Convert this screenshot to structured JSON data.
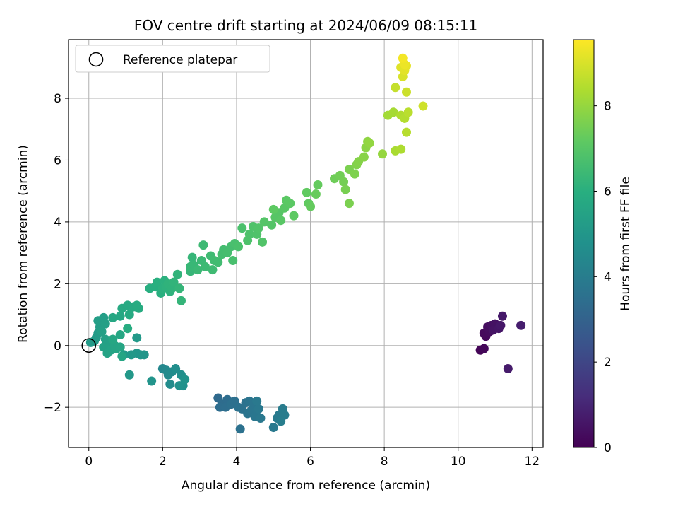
{
  "chart_data": {
    "type": "scatter",
    "title": "FOV centre drift starting at 2024/06/09 08:15:11",
    "xlabel": "Angular distance from reference (arcmin)",
    "ylabel": "Rotation from reference (arcmin)",
    "xlim": [
      -0.55,
      12.3
    ],
    "ylim": [
      -3.3,
      9.9
    ],
    "xticks": [
      0,
      2,
      4,
      6,
      8,
      10,
      12
    ],
    "xtick_labels": [
      "0",
      "2",
      "4",
      "6",
      "8",
      "10",
      "12"
    ],
    "yticks": [
      -2,
      0,
      2,
      4,
      6,
      8
    ],
    "ytick_labels": [
      "−2",
      "0",
      "2",
      "4",
      "6",
      "8"
    ],
    "grid": true,
    "legend": {
      "placement": "top-left",
      "entries": [
        {
          "label": "Reference platepar",
          "marker": "open-circle"
        }
      ]
    },
    "reference_point": {
      "x": 0,
      "y": 0
    },
    "colorbar": {
      "label": "Hours from first FF file",
      "colormap": "viridis",
      "range": [
        0,
        9.55
      ],
      "ticks": [
        0,
        2,
        4,
        6,
        8
      ],
      "tick_labels": [
        "0",
        "2",
        "4",
        "6",
        "8"
      ]
    },
    "points": [
      [
        10.6,
        -0.15,
        0.1
      ],
      [
        10.7,
        -0.1,
        0.15
      ],
      [
        10.75,
        0.3,
        0.2
      ],
      [
        10.7,
        0.4,
        0.25
      ],
      [
        10.85,
        0.45,
        0.3
      ],
      [
        10.8,
        0.6,
        0.35
      ],
      [
        10.9,
        0.65,
        0.4
      ],
      [
        11.0,
        0.7,
        0.45
      ],
      [
        10.95,
        0.5,
        0.5
      ],
      [
        11.1,
        0.55,
        0.55
      ],
      [
        11.15,
        0.65,
        0.6
      ],
      [
        11.2,
        0.95,
        0.65
      ],
      [
        11.35,
        -0.75,
        0.7
      ],
      [
        11.7,
        0.65,
        0.75
      ],
      [
        3.5,
        -1.7,
        3.3
      ],
      [
        3.6,
        -1.9,
        3.35
      ],
      [
        3.75,
        -1.75,
        3.4
      ],
      [
        3.55,
        -2.0,
        3.4
      ],
      [
        3.7,
        -2.0,
        3.45
      ],
      [
        3.85,
        -1.9,
        3.5
      ],
      [
        3.95,
        -1.8,
        3.5
      ],
      [
        4.05,
        -2.0,
        3.55
      ],
      [
        4.1,
        -2.7,
        3.55
      ],
      [
        4.15,
        -2.05,
        3.6
      ],
      [
        4.25,
        -1.85,
        3.6
      ],
      [
        4.35,
        -1.8,
        3.65
      ],
      [
        4.3,
        -2.2,
        3.65
      ],
      [
        4.4,
        -2.1,
        3.7
      ],
      [
        4.45,
        -1.85,
        3.7
      ],
      [
        4.5,
        -2.3,
        3.75
      ],
      [
        4.55,
        -2.1,
        3.75
      ],
      [
        4.6,
        -2.05,
        3.8
      ],
      [
        4.65,
        -2.35,
        3.8
      ],
      [
        4.55,
        -1.8,
        3.85
      ],
      [
        5.0,
        -2.65,
        3.85
      ],
      [
        5.1,
        -2.35,
        3.9
      ],
      [
        5.15,
        -2.25,
        3.9
      ],
      [
        5.25,
        -2.05,
        3.95
      ],
      [
        5.3,
        -2.25,
        3.95
      ],
      [
        5.2,
        -2.45,
        4.0
      ],
      [
        2.0,
        -0.75,
        4.4
      ],
      [
        2.1,
        -0.8,
        4.45
      ],
      [
        2.15,
        -0.95,
        4.5
      ],
      [
        2.25,
        -0.85,
        4.55
      ],
      [
        2.2,
        -1.25,
        4.6
      ],
      [
        2.35,
        -0.75,
        4.65
      ],
      [
        2.5,
        -0.95,
        4.7
      ],
      [
        2.55,
        -1.3,
        4.75
      ],
      [
        2.45,
        -1.3,
        4.8
      ],
      [
        2.6,
        -1.1,
        4.85
      ],
      [
        1.7,
        -1.15,
        4.9
      ],
      [
        1.5,
        -0.3,
        4.95
      ],
      [
        1.3,
        -0.25,
        5.0
      ],
      [
        1.4,
        -0.3,
        5.0
      ],
      [
        1.15,
        -0.3,
        5.05
      ],
      [
        1.1,
        -0.95,
        5.05
      ],
      [
        1.3,
        0.25,
        5.1
      ],
      [
        0.95,
        -0.3,
        5.1
      ],
      [
        0.05,
        0.1,
        5.15
      ],
      [
        0.15,
        0.15,
        5.15
      ],
      [
        0.2,
        0.25,
        5.2
      ],
      [
        0.25,
        0.4,
        5.2
      ],
      [
        0.3,
        0.6,
        5.25
      ],
      [
        0.35,
        0.75,
        5.25
      ],
      [
        0.25,
        0.8,
        5.3
      ],
      [
        0.4,
        0.9,
        5.3
      ],
      [
        0.45,
        0.7,
        5.35
      ],
      [
        0.35,
        0.45,
        5.35
      ],
      [
        0.45,
        0.2,
        5.4
      ],
      [
        0.55,
        0.05,
        5.4
      ],
      [
        0.4,
        -0.05,
        5.45
      ],
      [
        0.5,
        -0.1,
        5.45
      ],
      [
        0.6,
        -0.15,
        5.5
      ],
      [
        0.5,
        -0.25,
        5.5
      ],
      [
        0.7,
        0.0,
        5.55
      ],
      [
        0.75,
        -0.1,
        5.55
      ],
      [
        0.85,
        -0.05,
        5.6
      ],
      [
        0.9,
        -0.35,
        5.6
      ],
      [
        0.65,
        0.2,
        5.65
      ],
      [
        0.85,
        0.35,
        5.65
      ],
      [
        0.65,
        0.9,
        5.7
      ],
      [
        0.85,
        0.95,
        5.7
      ],
      [
        0.9,
        1.2,
        5.75
      ],
      [
        1.05,
        1.3,
        5.75
      ],
      [
        1.1,
        1.0,
        5.8
      ],
      [
        1.2,
        1.25,
        5.8
      ],
      [
        1.35,
        1.2,
        5.85
      ],
      [
        1.3,
        1.3,
        5.85
      ],
      [
        1.05,
        0.55,
        5.9
      ],
      [
        1.65,
        1.85,
        5.95
      ],
      [
        1.8,
        1.9,
        5.95
      ],
      [
        1.85,
        2.05,
        6.0
      ],
      [
        1.95,
        1.7,
        6.0
      ],
      [
        2.0,
        1.85,
        6.05
      ],
      [
        2.05,
        2.1,
        6.05
      ],
      [
        2.1,
        1.9,
        6.1
      ],
      [
        2.2,
        1.75,
        6.1
      ],
      [
        2.15,
        2.0,
        6.15
      ],
      [
        2.25,
        1.85,
        6.15
      ],
      [
        2.3,
        2.05,
        6.2
      ],
      [
        2.4,
        2.3,
        6.2
      ],
      [
        2.45,
        1.85,
        6.25
      ],
      [
        2.5,
        1.45,
        6.25
      ],
      [
        2.75,
        2.4,
        6.3
      ],
      [
        2.8,
        2.85,
        6.3
      ],
      [
        2.75,
        2.55,
        6.35
      ],
      [
        2.85,
        2.6,
        6.35
      ],
      [
        2.95,
        2.45,
        6.4
      ],
      [
        3.05,
        2.75,
        6.4
      ],
      [
        3.1,
        3.25,
        6.45
      ],
      [
        3.15,
        2.55,
        6.45
      ],
      [
        3.3,
        2.9,
        6.5
      ],
      [
        3.35,
        2.45,
        6.5
      ],
      [
        3.4,
        2.75,
        6.55
      ],
      [
        3.5,
        2.7,
        6.55
      ],
      [
        3.6,
        2.95,
        6.6
      ],
      [
        3.65,
        3.1,
        6.6
      ],
      [
        3.75,
        3.0,
        6.65
      ],
      [
        3.85,
        3.2,
        6.65
      ],
      [
        3.9,
        2.75,
        6.7
      ],
      [
        3.95,
        3.3,
        6.7
      ],
      [
        4.05,
        3.2,
        6.75
      ],
      [
        4.15,
        3.8,
        6.75
      ],
      [
        4.3,
        3.4,
        6.8
      ],
      [
        4.35,
        3.6,
        6.8
      ],
      [
        4.45,
        3.85,
        6.85
      ],
      [
        4.55,
        3.6,
        6.85
      ],
      [
        4.6,
        3.8,
        6.9
      ],
      [
        4.7,
        3.35,
        6.9
      ],
      [
        4.75,
        4.0,
        6.95
      ],
      [
        4.95,
        3.9,
        6.95
      ],
      [
        5.05,
        4.15,
        7.0
      ],
      [
        5.15,
        4.3,
        7.0
      ],
      [
        5.2,
        4.05,
        7.05
      ],
      [
        5.3,
        4.45,
        7.05
      ],
      [
        5.35,
        4.7,
        7.1
      ],
      [
        5.45,
        4.6,
        7.1
      ],
      [
        5.55,
        4.2,
        7.15
      ],
      [
        5.0,
        4.4,
        7.15
      ],
      [
        5.9,
        4.95,
        7.2
      ],
      [
        5.95,
        4.6,
        7.2
      ],
      [
        6.0,
        4.5,
        7.25
      ],
      [
        6.2,
        5.2,
        7.25
      ],
      [
        6.15,
        4.9,
        7.3
      ],
      [
        6.65,
        5.4,
        7.4
      ],
      [
        6.8,
        5.5,
        7.45
      ],
      [
        6.9,
        5.3,
        7.5
      ],
      [
        6.95,
        5.05,
        7.55
      ],
      [
        7.05,
        5.7,
        7.6
      ],
      [
        7.05,
        4.6,
        7.6
      ],
      [
        7.2,
        5.55,
        7.65
      ],
      [
        7.25,
        5.85,
        7.7
      ],
      [
        7.3,
        5.95,
        7.75
      ],
      [
        7.45,
        6.1,
        7.8
      ],
      [
        7.5,
        6.4,
        7.85
      ],
      [
        7.55,
        6.6,
        7.9
      ],
      [
        7.6,
        6.55,
        7.95
      ],
      [
        7.95,
        6.2,
        8.0
      ],
      [
        8.1,
        7.45,
        8.2
      ],
      [
        8.25,
        7.55,
        8.25
      ],
      [
        8.3,
        6.3,
        8.3
      ],
      [
        8.45,
        6.35,
        8.35
      ],
      [
        8.45,
        7.45,
        8.4
      ],
      [
        8.55,
        7.35,
        8.45
      ],
      [
        8.6,
        6.9,
        8.5
      ],
      [
        8.65,
        7.55,
        8.55
      ],
      [
        8.3,
        8.35,
        8.7
      ],
      [
        8.6,
        8.2,
        8.8
      ],
      [
        9.05,
        7.75,
        8.85
      ],
      [
        8.5,
        8.7,
        9.0
      ],
      [
        8.45,
        9.0,
        9.1
      ],
      [
        8.55,
        8.9,
        9.15
      ],
      [
        8.6,
        9.05,
        9.2
      ],
      [
        8.55,
        9.1,
        9.3
      ],
      [
        8.5,
        9.3,
        9.4
      ]
    ]
  }
}
